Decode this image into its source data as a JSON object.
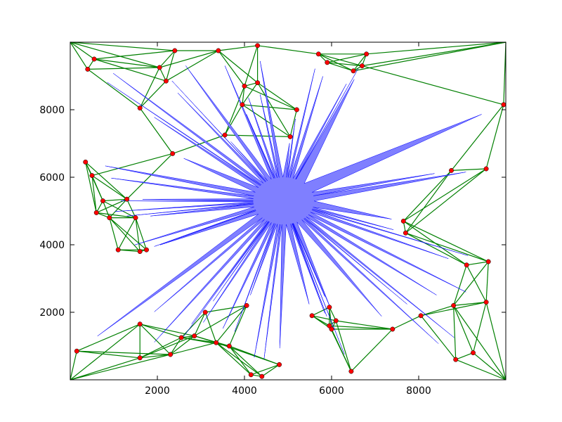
{
  "chart_data": {
    "type": "scatter",
    "title": "",
    "xlabel": "",
    "ylabel": "",
    "xlim": [
      0,
      10000
    ],
    "ylim": [
      0,
      10000
    ],
    "x_ticks": [
      2000,
      4000,
      6000,
      8000
    ],
    "x_tick_labels": [
      "2000",
      "4000",
      "6000",
      "8000"
    ],
    "y_ticks": [
      2000,
      4000,
      6000,
      8000
    ],
    "y_tick_labels": [
      "2000",
      "4000",
      "6000",
      "8000"
    ],
    "grid": false,
    "colors": {
      "points": "#ff0000",
      "edges": "#007f00",
      "polygon_fill": "#7f7fff",
      "polygon_stroke": "#0000ff",
      "axes": "#000000"
    },
    "polygon_center": [
      4900,
      5300
    ],
    "points": [
      {
        "x": 2400,
        "y": 9750
      },
      {
        "x": 3400,
        "y": 9750
      },
      {
        "x": 4300,
        "y": 9900
      },
      {
        "x": 5700,
        "y": 9650
      },
      {
        "x": 6800,
        "y": 9650
      },
      {
        "x": 400,
        "y": 9200
      },
      {
        "x": 2050,
        "y": 9250
      },
      {
        "x": 5900,
        "y": 9400
      },
      {
        "x": 6700,
        "y": 9300
      },
      {
        "x": 550,
        "y": 9500
      },
      {
        "x": 6500,
        "y": 9150
      },
      {
        "x": 2200,
        "y": 8850
      },
      {
        "x": 4300,
        "y": 8800
      },
      {
        "x": 4000,
        "y": 8700
      },
      {
        "x": 3950,
        "y": 8150
      },
      {
        "x": 1600,
        "y": 8050
      },
      {
        "x": 5200,
        "y": 8000
      },
      {
        "x": 9950,
        "y": 8150
      },
      {
        "x": 3550,
        "y": 7250
      },
      {
        "x": 5050,
        "y": 7200
      },
      {
        "x": 2350,
        "y": 6700
      },
      {
        "x": 350,
        "y": 6450
      },
      {
        "x": 500,
        "y": 6050
      },
      {
        "x": 8750,
        "y": 6200
      },
      {
        "x": 9550,
        "y": 6250
      },
      {
        "x": 1300,
        "y": 5350
      },
      {
        "x": 750,
        "y": 5300
      },
      {
        "x": 600,
        "y": 4950
      },
      {
        "x": 900,
        "y": 4800
      },
      {
        "x": 1500,
        "y": 4800
      },
      {
        "x": 7650,
        "y": 4700
      },
      {
        "x": 7700,
        "y": 4350
      },
      {
        "x": 1100,
        "y": 3850
      },
      {
        "x": 1600,
        "y": 3800
      },
      {
        "x": 1750,
        "y": 3850
      },
      {
        "x": 9100,
        "y": 3400
      },
      {
        "x": 9600,
        "y": 3500
      },
      {
        "x": 9550,
        "y": 2300
      },
      {
        "x": 8800,
        "y": 2200
      },
      {
        "x": 4050,
        "y": 2200
      },
      {
        "x": 3100,
        "y": 2000
      },
      {
        "x": 5550,
        "y": 1900
      },
      {
        "x": 5950,
        "y": 2150
      },
      {
        "x": 8050,
        "y": 1900
      },
      {
        "x": 6100,
        "y": 1750
      },
      {
        "x": 5950,
        "y": 1600
      },
      {
        "x": 6000,
        "y": 1500
      },
      {
        "x": 7400,
        "y": 1500
      },
      {
        "x": 1600,
        "y": 1650
      },
      {
        "x": 2850,
        "y": 1300
      },
      {
        "x": 2550,
        "y": 1250
      },
      {
        "x": 3350,
        "y": 1100
      },
      {
        "x": 3650,
        "y": 1000
      },
      {
        "x": 150,
        "y": 850
      },
      {
        "x": 9250,
        "y": 800
      },
      {
        "x": 2300,
        "y": 750
      },
      {
        "x": 1600,
        "y": 650
      },
      {
        "x": 8850,
        "y": 600
      },
      {
        "x": 4800,
        "y": 450
      },
      {
        "x": 6450,
        "y": 250
      },
      {
        "x": 4150,
        "y": 150
      },
      {
        "x": 4400,
        "y": 100
      }
    ]
  }
}
